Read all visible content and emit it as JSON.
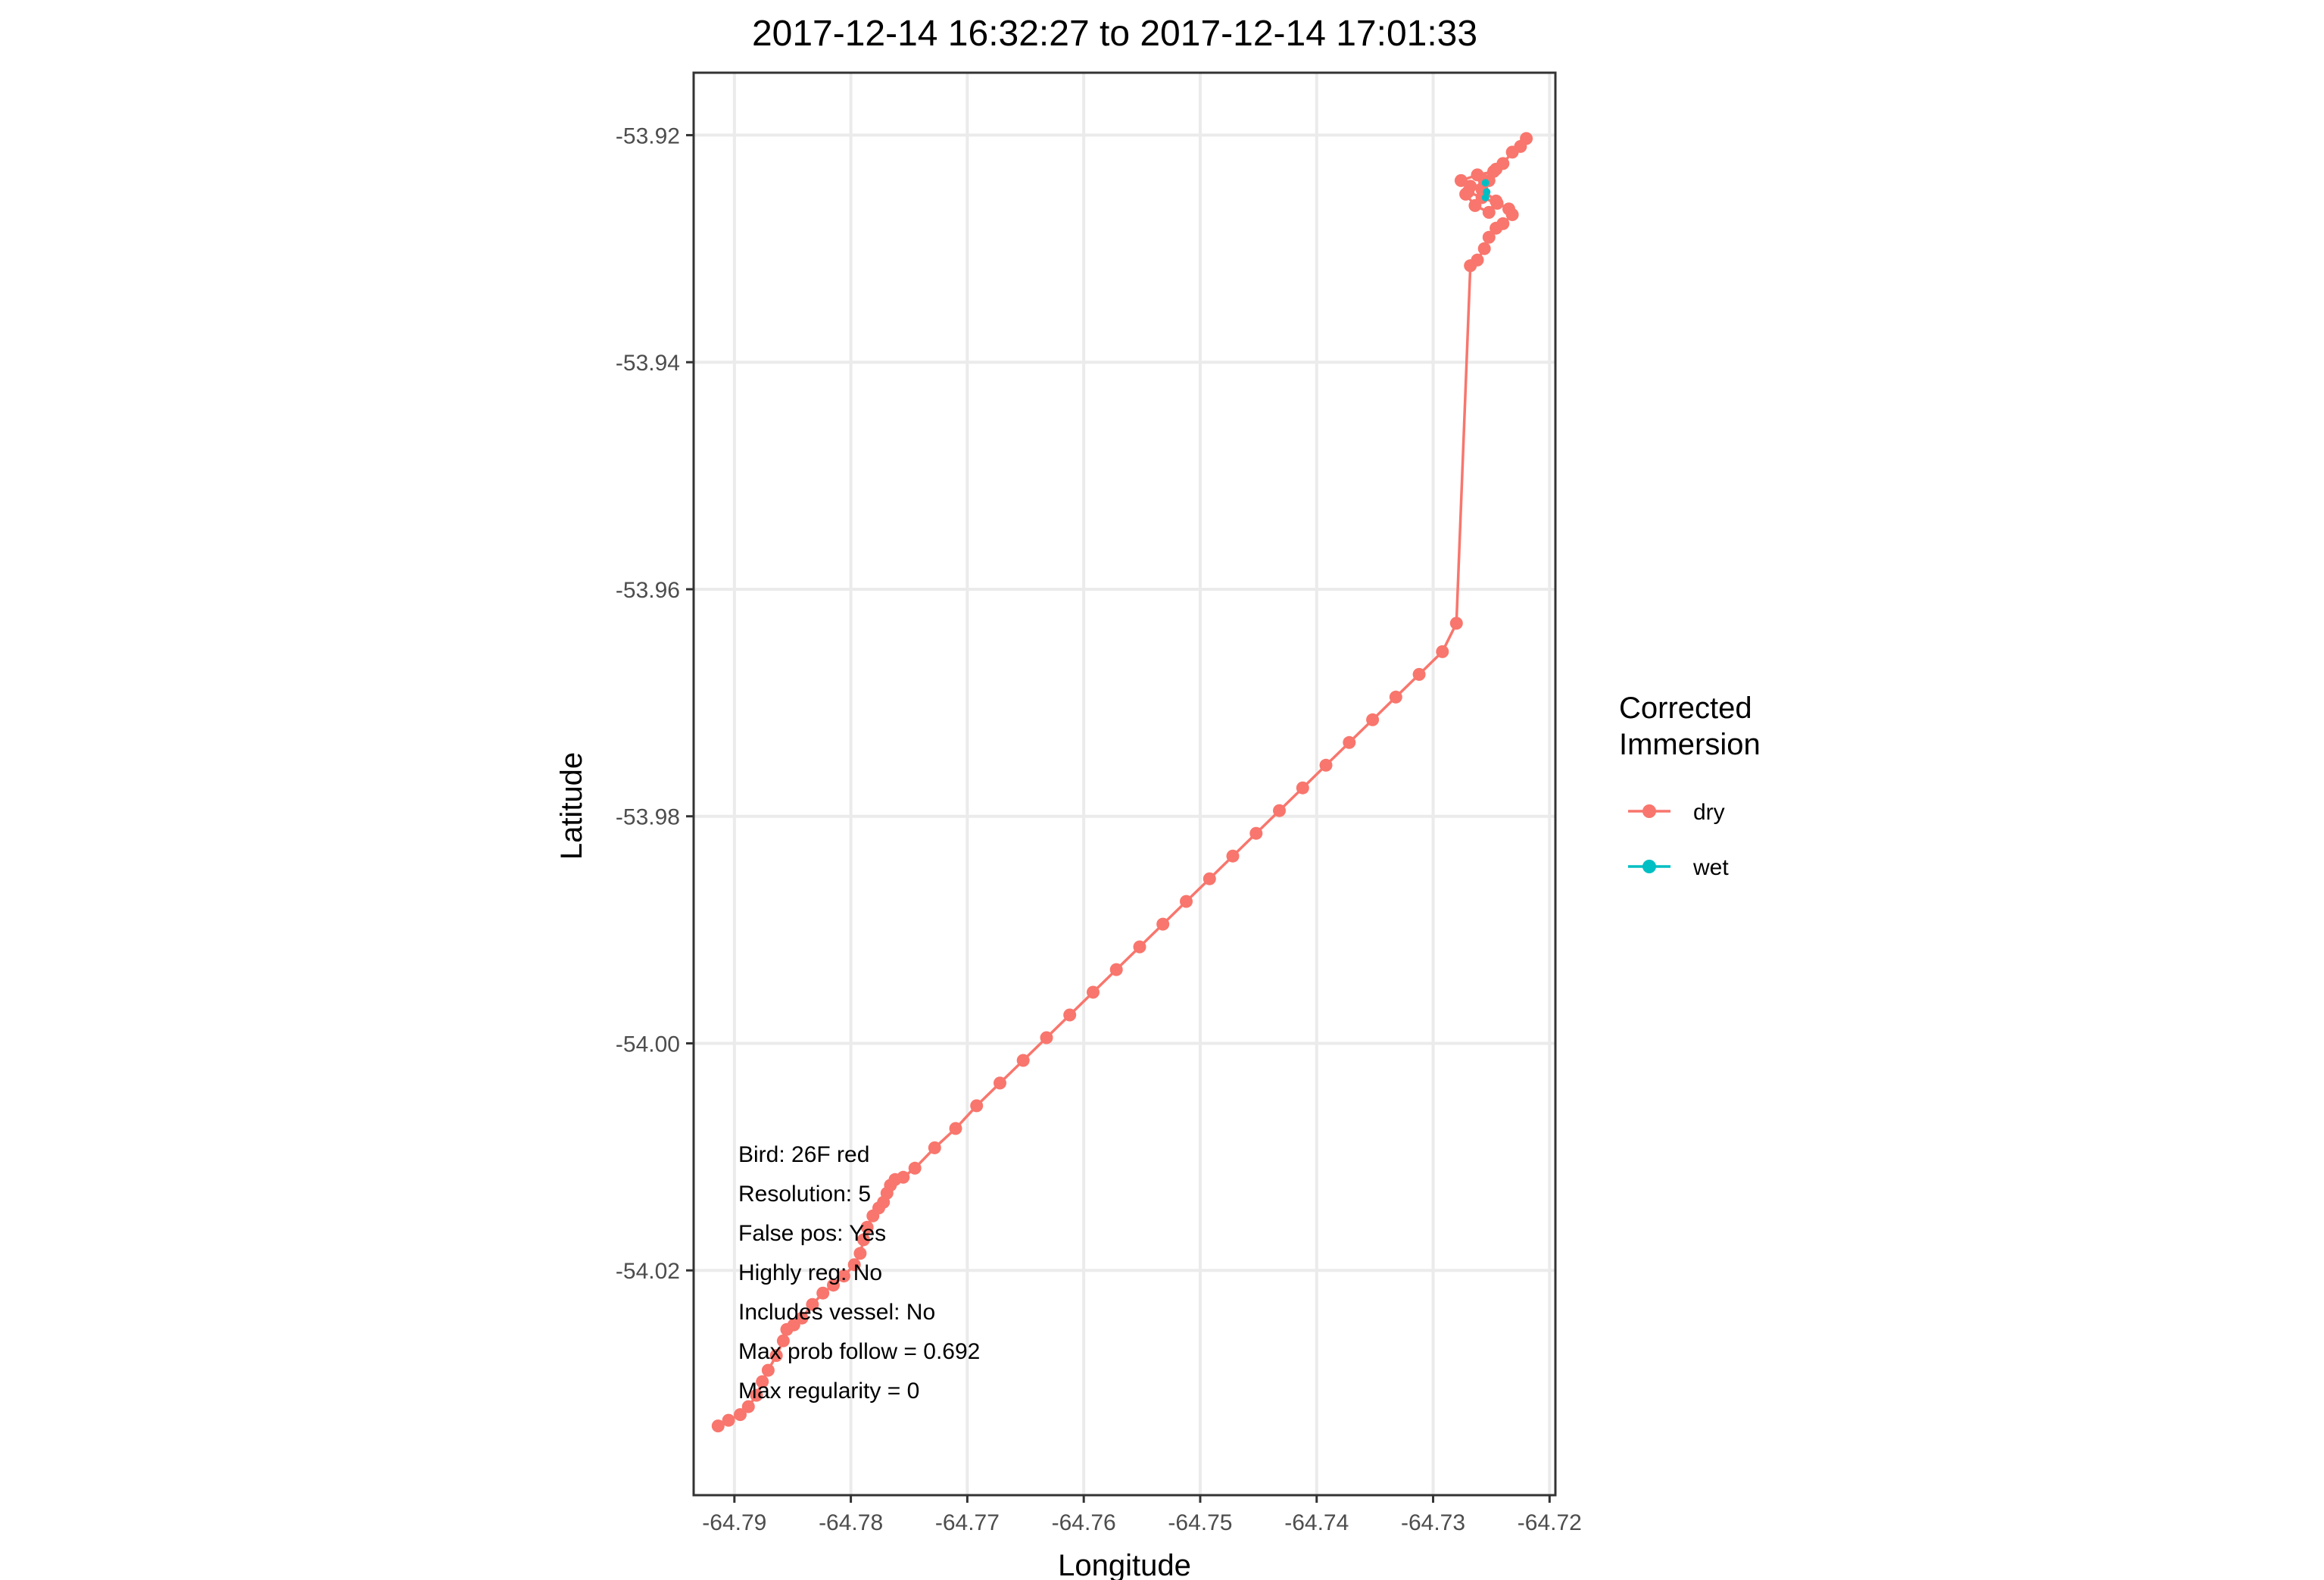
{
  "chart_data": {
    "type": "line",
    "title": "2017-12-14 16:32:27 to 2017-12-14 17:01:33",
    "xlabel": "Longitude",
    "ylabel": "Latitude",
    "xlim": [
      -64.7935,
      -64.7195
    ],
    "ylim": [
      -54.0398,
      -53.9145
    ],
    "x_ticks": [
      -64.79,
      -64.78,
      -64.77,
      -64.76,
      -64.75,
      -64.74,
      -64.73,
      -64.72
    ],
    "x_tick_labels": [
      "-64.79",
      "-64.78",
      "-64.77",
      "-64.76",
      "-64.75",
      "-64.74",
      "-64.73",
      "-64.72"
    ],
    "y_ticks": [
      -53.92,
      -53.94,
      -53.96,
      -53.98,
      -54.0,
      -54.02
    ],
    "y_tick_labels": [
      "-53.92",
      "-53.94",
      "-53.96",
      "-53.98",
      "-54.00",
      "-54.02"
    ],
    "grid": true,
    "legend": {
      "title_lines": [
        "Corrected",
        "Immersion"
      ],
      "position": "right",
      "entries": [
        {
          "label": "dry",
          "color": "#F8766D"
        },
        {
          "label": "wet",
          "color": "#00BFC4"
        }
      ]
    },
    "annotation_lines": [
      "Bird: 26F red",
      "Resolution: 5",
      "False pos: Yes",
      "Highly reg: No",
      "Includes vessel: No",
      "Max prob follow = 0.692",
      "Max regularity = 0"
    ],
    "series": [
      {
        "name": "dry",
        "color": "#F8766D",
        "x": [
          -64.7914,
          -64.7905,
          -64.7895,
          -64.7888,
          -64.7881,
          -64.7876,
          -64.7871,
          -64.7864,
          -64.7858,
          -64.7855,
          -64.7849,
          -64.7842,
          -64.7833,
          -64.7824,
          -64.7815,
          -64.7806,
          -64.7797,
          -64.7792,
          -64.7789,
          -64.7786,
          -64.7781,
          -64.7776,
          -64.7772,
          -64.7769,
          -64.7766,
          -64.7762,
          -64.7755,
          -64.7745,
          -64.7728,
          -64.771,
          -64.7692,
          -64.7672,
          -64.7652,
          -64.7632,
          -64.7612,
          -64.7592,
          -64.7572,
          -64.7552,
          -64.7532,
          -64.7512,
          -64.7492,
          -64.7472,
          -64.7452,
          -64.7432,
          -64.7412,
          -64.7392,
          -64.7372,
          -64.7352,
          -64.7332,
          -64.7312,
          -64.7292,
          -64.728,
          -64.7268,
          -64.7262,
          -64.7256,
          -64.7252,
          -64.7246,
          -64.724,
          -64.7232,
          -64.7235,
          -64.7245,
          -64.7258,
          -64.727,
          -64.7268,
          -64.7276,
          -64.7262,
          -64.7248,
          -64.7256,
          -64.7272,
          -64.7264,
          -64.7252,
          -64.7246,
          -64.7258,
          -64.7252,
          -64.7246,
          -64.724,
          -64.7232,
          -64.7225,
          -64.722
        ],
        "y": [
          -54.0337,
          -54.0332,
          -54.0327,
          -54.032,
          -54.031,
          -54.0298,
          -54.0288,
          -54.0275,
          -54.0262,
          -54.0252,
          -54.0248,
          -54.0242,
          -54.023,
          -54.022,
          -54.0213,
          -54.0205,
          -54.0195,
          -54.0185,
          -54.0173,
          -54.0162,
          -54.0152,
          -54.0145,
          -54.014,
          -54.0132,
          -54.0125,
          -54.012,
          -54.0118,
          -54.011,
          -54.0092,
          -54.0075,
          -54.0055,
          -54.0035,
          -54.0015,
          -53.9995,
          -53.9975,
          -53.9955,
          -53.9935,
          -53.9915,
          -53.9895,
          -53.9875,
          -53.9855,
          -53.9835,
          -53.9815,
          -53.9795,
          -53.9775,
          -53.9755,
          -53.9735,
          -53.9715,
          -53.9695,
          -53.9675,
          -53.9655,
          -53.963,
          -53.9315,
          -53.931,
          -53.93,
          -53.929,
          -53.9282,
          -53.9278,
          -53.927,
          -53.9265,
          -53.926,
          -53.9255,
          -53.925,
          -53.9245,
          -53.924,
          -53.9235,
          -53.9232,
          -53.924,
          -53.9252,
          -53.9262,
          -53.9268,
          -53.9258,
          -53.9248,
          -53.924,
          -53.923,
          -53.9225,
          -53.9215,
          -53.921,
          -53.9203
        ]
      },
      {
        "name": "wet",
        "color": "#00BFC4",
        "x": [
          -64.7255,
          -64.7254,
          -64.7255
        ],
        "y": [
          -53.9242,
          -53.925,
          -53.9255
        ]
      }
    ]
  }
}
